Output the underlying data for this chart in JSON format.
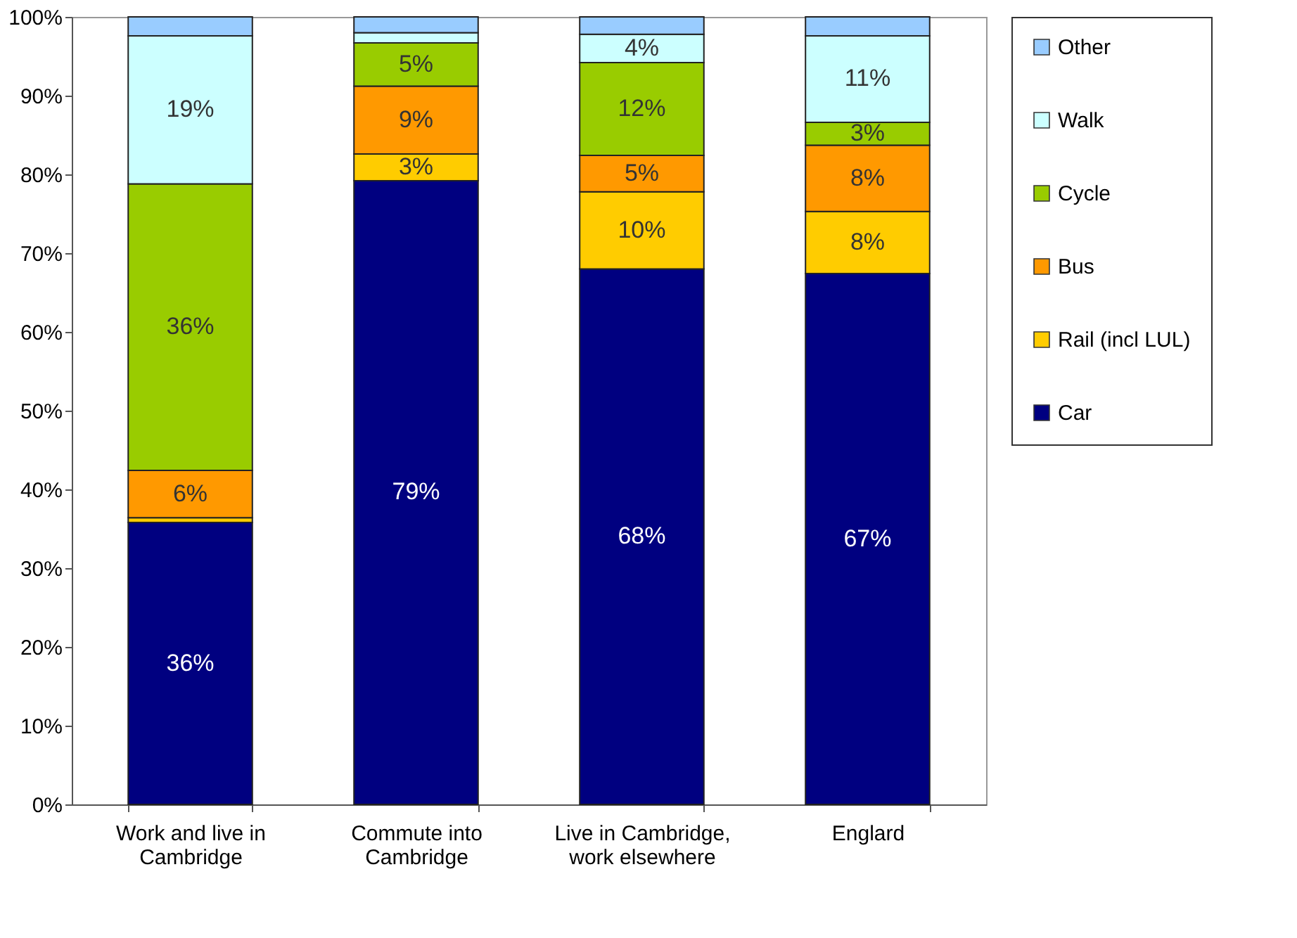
{
  "chart_data": {
    "type": "bar",
    "stacked": true,
    "categories": [
      "Work and live in Cambridge",
      "Commute into Cambridge",
      "Live in Cambridge, work elsewhere",
      "Englard"
    ],
    "series": [
      {
        "name": "Car",
        "color": "#000080",
        "values": [
          35.8,
          79.2,
          68,
          67.4
        ],
        "value_labels": [
          "36%",
          "79%",
          "68%",
          "67%"
        ]
      },
      {
        "name": "Rail (incl LUL)",
        "color": "#ffcc00",
        "values": [
          0.6,
          3.4,
          9.8,
          7.9
        ],
        "value_labels": [
          null,
          "3%",
          "10%",
          "8%"
        ]
      },
      {
        "name": "Bus",
        "color": "#ff9900",
        "values": [
          6,
          8.6,
          4.6,
          8.4
        ],
        "value_labels": [
          "6%",
          "9%",
          "5%",
          "8%"
        ]
      },
      {
        "name": "Cycle",
        "color": "#99cc00",
        "values": [
          36.4,
          5.5,
          11.8,
          2.9
        ],
        "value_labels": [
          "36%",
          "5%",
          "12%",
          "3%"
        ]
      },
      {
        "name": "Walk",
        "color": "#ccffff",
        "values": [
          18.8,
          1.3,
          3.6,
          11
        ],
        "value_labels": [
          "19%",
          null,
          "4%",
          "11%"
        ]
      },
      {
        "name": "Other",
        "color": "#99ccff",
        "values": [
          2.4,
          2,
          2.2,
          2.4
        ],
        "value_labels": [
          null,
          null,
          null,
          null
        ]
      }
    ],
    "ylim": [
      0,
      100
    ],
    "yticks": [
      {
        "value": 0,
        "label": "0%"
      },
      {
        "value": 10,
        "label": "10%"
      },
      {
        "value": 20,
        "label": "20%"
      },
      {
        "value": 30,
        "label": "30%"
      },
      {
        "value": 40,
        "label": "40%"
      },
      {
        "value": 50,
        "label": "50%"
      },
      {
        "value": 60,
        "label": "60%"
      },
      {
        "value": 70,
        "label": "70%"
      },
      {
        "value": 80,
        "label": "80%"
      },
      {
        "value": 90,
        "label": "90%"
      },
      {
        "value": 100,
        "label": "100%"
      }
    ],
    "grid": false,
    "legend": "right"
  }
}
